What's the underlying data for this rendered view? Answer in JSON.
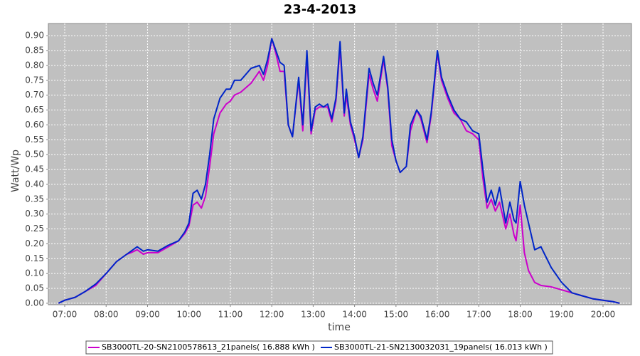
{
  "chart_data": {
    "type": "line",
    "title": "23-4-2013",
    "x_label": "time",
    "y_label": "Watt/Wp",
    "x": [
      6.85,
      7.0,
      7.25,
      7.5,
      7.75,
      8.0,
      8.25,
      8.5,
      8.6,
      8.75,
      8.9,
      9.0,
      9.25,
      9.5,
      9.75,
      9.9,
      10.0,
      10.1,
      10.2,
      10.3,
      10.4,
      10.5,
      10.6,
      10.75,
      10.9,
      11.0,
      11.1,
      11.25,
      11.5,
      11.7,
      11.8,
      11.9,
      12.0,
      12.1,
      12.2,
      12.3,
      12.4,
      12.5,
      12.65,
      12.75,
      12.85,
      12.95,
      13.05,
      13.15,
      13.25,
      13.35,
      13.45,
      13.55,
      13.65,
      13.75,
      13.8,
      13.9,
      14.0,
      14.1,
      14.2,
      14.35,
      14.45,
      14.55,
      14.7,
      14.8,
      14.9,
      15.0,
      15.1,
      15.25,
      15.35,
      15.5,
      15.6,
      15.75,
      15.85,
      16.0,
      16.1,
      16.25,
      16.4,
      16.55,
      16.7,
      16.85,
      17.0,
      17.1,
      17.2,
      17.3,
      17.4,
      17.5,
      17.65,
      17.75,
      17.85,
      17.9,
      18.0,
      18.1,
      18.2,
      18.35,
      18.5,
      18.75,
      19.0,
      19.25,
      19.5,
      19.75,
      20.0,
      20.25,
      20.4
    ],
    "series": [
      {
        "name": "SB3000TL-20-SN2100578613_21panels( 16.888 kWh )",
        "color": "#cc00cc",
        "values": [
          0.0,
          0.01,
          0.02,
          0.04,
          0.06,
          0.1,
          0.14,
          0.165,
          0.17,
          0.18,
          0.165,
          0.17,
          0.17,
          0.19,
          0.21,
          0.235,
          0.26,
          0.33,
          0.34,
          0.32,
          0.36,
          0.46,
          0.57,
          0.64,
          0.67,
          0.68,
          0.7,
          0.71,
          0.74,
          0.78,
          0.75,
          0.8,
          0.89,
          0.84,
          0.78,
          0.78,
          0.6,
          0.56,
          0.75,
          0.58,
          0.83,
          0.57,
          0.65,
          0.66,
          0.66,
          0.66,
          0.61,
          0.68,
          0.86,
          0.63,
          0.7,
          0.6,
          0.55,
          0.49,
          0.55,
          0.77,
          0.72,
          0.68,
          0.82,
          0.72,
          0.53,
          0.48,
          0.44,
          0.46,
          0.58,
          0.65,
          0.62,
          0.54,
          0.63,
          0.84,
          0.75,
          0.69,
          0.64,
          0.62,
          0.58,
          0.57,
          0.55,
          0.42,
          0.32,
          0.35,
          0.31,
          0.34,
          0.25,
          0.3,
          0.23,
          0.21,
          0.33,
          0.17,
          0.11,
          0.07,
          0.06,
          0.055,
          0.045,
          0.035,
          0.025,
          0.015,
          0.01,
          0.005,
          0.0
        ]
      },
      {
        "name": "SB3000TL-21-SN2130032031_19panels( 16.013 kWh )",
        "color": "#0026c8",
        "values": [
          0.0,
          0.01,
          0.02,
          0.04,
          0.065,
          0.1,
          0.14,
          0.165,
          0.175,
          0.19,
          0.175,
          0.18,
          0.175,
          0.195,
          0.21,
          0.24,
          0.27,
          0.37,
          0.38,
          0.35,
          0.4,
          0.5,
          0.62,
          0.69,
          0.72,
          0.72,
          0.75,
          0.75,
          0.79,
          0.8,
          0.77,
          0.82,
          0.89,
          0.85,
          0.81,
          0.8,
          0.6,
          0.56,
          0.76,
          0.6,
          0.85,
          0.58,
          0.66,
          0.67,
          0.66,
          0.67,
          0.62,
          0.69,
          0.88,
          0.64,
          0.72,
          0.61,
          0.56,
          0.49,
          0.56,
          0.79,
          0.74,
          0.7,
          0.83,
          0.73,
          0.55,
          0.48,
          0.44,
          0.46,
          0.6,
          0.65,
          0.63,
          0.55,
          0.64,
          0.85,
          0.76,
          0.7,
          0.65,
          0.62,
          0.61,
          0.58,
          0.57,
          0.45,
          0.34,
          0.38,
          0.33,
          0.39,
          0.27,
          0.34,
          0.28,
          0.27,
          0.41,
          0.33,
          0.27,
          0.18,
          0.19,
          0.12,
          0.07,
          0.035,
          0.025,
          0.015,
          0.01,
          0.005,
          0.0
        ]
      }
    ],
    "xlim": [
      6.605,
      20.687
    ],
    "ylim": [
      -0.005,
      0.941
    ],
    "xticks": [
      {
        "value": 7,
        "label": "07:00"
      },
      {
        "value": 8,
        "label": "08:00"
      },
      {
        "value": 9,
        "label": "09:00"
      },
      {
        "value": 10,
        "label": "10:00"
      },
      {
        "value": 11,
        "label": "11:00"
      },
      {
        "value": 12,
        "label": "12:00"
      },
      {
        "value": 13,
        "label": "13:00"
      },
      {
        "value": 14,
        "label": "14:00"
      },
      {
        "value": 15,
        "label": "15:00"
      },
      {
        "value": 16,
        "label": "16:00"
      },
      {
        "value": 17,
        "label": "17:00"
      },
      {
        "value": 18,
        "label": "18:00"
      },
      {
        "value": 19,
        "label": "19:00"
      },
      {
        "value": 20,
        "label": "20:00"
      }
    ],
    "yticks": [
      {
        "value": 0,
        "label": "0.00"
      },
      {
        "value": 0.05,
        "label": "0.05"
      },
      {
        "value": 0.1,
        "label": "0.10"
      },
      {
        "value": 0.15,
        "label": "0.15"
      },
      {
        "value": 0.2,
        "label": "0.20"
      },
      {
        "value": 0.25,
        "label": "0.25"
      },
      {
        "value": 0.3,
        "label": "0.30"
      },
      {
        "value": 0.35,
        "label": "0.35"
      },
      {
        "value": 0.4,
        "label": "0.40"
      },
      {
        "value": 0.45,
        "label": "0.45"
      },
      {
        "value": 0.5,
        "label": "0.50"
      },
      {
        "value": 0.55,
        "label": "0.55"
      },
      {
        "value": 0.6,
        "label": "0.60"
      },
      {
        "value": 0.65,
        "label": "0.65"
      },
      {
        "value": 0.7,
        "label": "0.70"
      },
      {
        "value": 0.75,
        "label": "0.75"
      },
      {
        "value": 0.8,
        "label": "0.80"
      },
      {
        "value": 0.85,
        "label": "0.85"
      },
      {
        "value": 0.9,
        "label": "0.90"
      }
    ],
    "grid": true,
    "legend": "bottom"
  }
}
